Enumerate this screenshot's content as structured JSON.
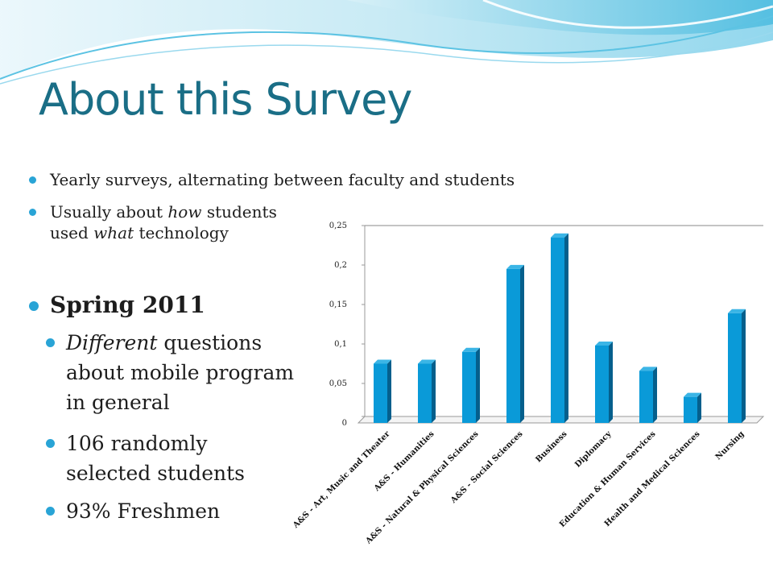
{
  "slide": {
    "title": "About this Survey",
    "bullets": {
      "b1": "Yearly surveys, alternating between faculty and students",
      "b2_pre": "Usually about ",
      "b2_em1": "how",
      "b2_mid": " students",
      "b2_line2_pre": "used ",
      "b2_em2": "what",
      "b2_line2_post": " technology",
      "b3": "Spring 2011",
      "b4_em": "Different",
      "b4_line1_post": " questions",
      "b4_line2": "about mobile program",
      "b4_line3": "in general",
      "b5_line1": "106 randomly",
      "b5_line2": "selected students",
      "b6": "93% Freshmen"
    },
    "colors": {
      "title": "#1a6e86",
      "bullet": "#29a4d6",
      "bar_front": "#0a9ad8",
      "bar_side": "#055f8c"
    }
  },
  "chart_data": {
    "type": "bar",
    "categories": [
      "A&S - Art, Music and Theater",
      "A&S - Humanities",
      "A&S - Natural & Physical Sciences",
      "A&S - Social Sciences",
      "Business",
      "Diplomacy",
      "Education & Human Services",
      "Health and Medical Sciences",
      "Nursing"
    ],
    "values": [
      0.075,
      0.075,
      0.09,
      0.195,
      0.235,
      0.098,
      0.066,
      0.033,
      0.139
    ],
    "ylim": [
      0,
      0.25
    ],
    "ytick_labels": [
      "0",
      "0,05",
      "0,1",
      "0,15",
      "0,2",
      "0,25"
    ],
    "title": "",
    "xlabel": "",
    "ylabel": "",
    "grid": false,
    "legend": "none"
  }
}
